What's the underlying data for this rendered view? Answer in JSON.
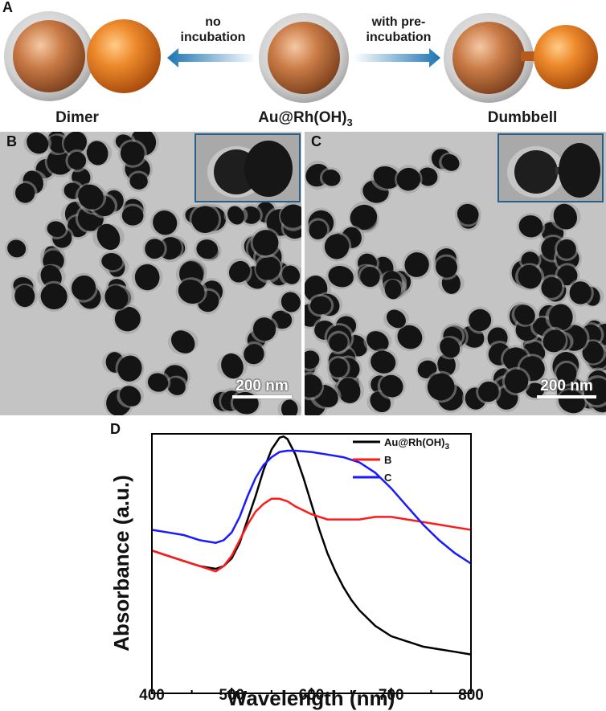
{
  "panels": {
    "a": "A",
    "b": "B",
    "c": "C",
    "d": "D"
  },
  "schematic": {
    "left_label": "Dimer",
    "center_label_main": "Au@Rh(OH)",
    "center_label_sub": "3",
    "right_label": "Dumbbell",
    "left_arrow_text_line1": "no",
    "left_arrow_text_line2": "incubation",
    "right_arrow_text_line1": "with pre-",
    "right_arrow_text_line2": "incubation",
    "colors": {
      "gold_core": "#c97a45",
      "rh_shell": "#b9b9b9",
      "orange_particle": "#e3701d",
      "arrow_blue": "#1b73b3"
    }
  },
  "tem": {
    "scale_b": "200 nm",
    "scale_c": "200 nm"
  },
  "chart_data": {
    "type": "line",
    "title": "",
    "xlabel": "Wavelength (nm)",
    "ylabel": "Absorbance (a.u.)",
    "xlim": [
      400,
      800
    ],
    "xticks": [
      "400",
      "500",
      "600",
      "700",
      "800"
    ],
    "y_ticks_shown": false,
    "grid": false,
    "legend_position": "top-right",
    "series": [
      {
        "name": "Au@Rh(OH)3",
        "legend_main": "Au@Rh(OH)",
        "legend_sub": "3",
        "color": "#000000",
        "x": [
          400,
          420,
          440,
          460,
          480,
          490,
          500,
          510,
          520,
          530,
          540,
          550,
          560,
          565,
          570,
          580,
          590,
          600,
          610,
          620,
          630,
          640,
          650,
          660,
          680,
          700,
          720,
          740,
          760,
          780,
          800
        ],
        "y": [
          0.55,
          0.53,
          0.51,
          0.49,
          0.48,
          0.49,
          0.52,
          0.58,
          0.67,
          0.76,
          0.86,
          0.94,
          0.985,
          0.99,
          0.98,
          0.92,
          0.83,
          0.73,
          0.63,
          0.54,
          0.47,
          0.41,
          0.36,
          0.32,
          0.26,
          0.22,
          0.2,
          0.18,
          0.17,
          0.16,
          0.15
        ]
      },
      {
        "name": "B",
        "color": "#ff1a1a",
        "x": [
          400,
          420,
          440,
          460,
          480,
          490,
          500,
          510,
          520,
          530,
          540,
          550,
          560,
          570,
          580,
          600,
          620,
          640,
          660,
          680,
          700,
          720,
          740,
          760,
          780,
          800
        ],
        "y": [
          0.55,
          0.53,
          0.51,
          0.49,
          0.47,
          0.49,
          0.53,
          0.59,
          0.65,
          0.7,
          0.73,
          0.75,
          0.75,
          0.74,
          0.72,
          0.69,
          0.67,
          0.67,
          0.67,
          0.68,
          0.68,
          0.67,
          0.66,
          0.65,
          0.64,
          0.63
        ]
      },
      {
        "name": "C",
        "color": "#1a1aff",
        "x": [
          400,
          420,
          440,
          460,
          480,
          490,
          500,
          510,
          520,
          530,
          540,
          550,
          560,
          570,
          580,
          600,
          620,
          640,
          660,
          680,
          700,
          720,
          740,
          760,
          780,
          800
        ],
        "y": [
          0.63,
          0.62,
          0.61,
          0.59,
          0.58,
          0.59,
          0.62,
          0.68,
          0.76,
          0.83,
          0.88,
          0.91,
          0.93,
          0.935,
          0.935,
          0.93,
          0.92,
          0.91,
          0.89,
          0.85,
          0.79,
          0.72,
          0.65,
          0.59,
          0.54,
          0.5
        ]
      }
    ]
  }
}
